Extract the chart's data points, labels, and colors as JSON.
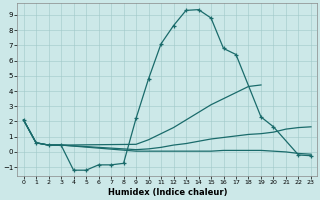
{
  "xlabel": "Humidex (Indice chaleur)",
  "xlim": [
    -0.5,
    23.5
  ],
  "ylim": [
    -1.6,
    9.8
  ],
  "xticks": [
    0,
    1,
    2,
    3,
    4,
    5,
    6,
    7,
    8,
    9,
    10,
    11,
    12,
    13,
    14,
    15,
    16,
    17,
    18,
    19,
    20,
    21,
    22,
    23
  ],
  "yticks": [
    -1,
    0,
    1,
    2,
    3,
    4,
    5,
    6,
    7,
    8,
    9
  ],
  "bg_color": "#cce8e8",
  "grid_color": "#a0c8c8",
  "line_color": "#1a6b6b",
  "curve_main": {
    "x": [
      0,
      1,
      2,
      3,
      4,
      5,
      6,
      7,
      8,
      9,
      10,
      11,
      12,
      13,
      14,
      15,
      16,
      17,
      19,
      20,
      22,
      23
    ],
    "y": [
      2.1,
      0.6,
      0.45,
      0.45,
      -1.2,
      -1.2,
      -0.85,
      -0.85,
      -0.75,
      2.2,
      4.8,
      7.1,
      8.3,
      9.3,
      9.35,
      8.8,
      6.8,
      6.4,
      2.3,
      1.65,
      -0.2,
      -0.25
    ]
  },
  "curve_diag": {
    "x": [
      0,
      1,
      2,
      3,
      9,
      10,
      11,
      12,
      13,
      14,
      15,
      16,
      17,
      18,
      19
    ],
    "y": [
      2.1,
      0.6,
      0.45,
      0.45,
      0.5,
      0.8,
      1.2,
      1.6,
      2.1,
      2.6,
      3.1,
      3.5,
      3.9,
      4.3,
      4.4
    ]
  },
  "curve_flat_diag": {
    "x": [
      0,
      1,
      2,
      3,
      9,
      10,
      11,
      12,
      13,
      14,
      15,
      16,
      17,
      18,
      19,
      20,
      21,
      22,
      23
    ],
    "y": [
      2.1,
      0.6,
      0.45,
      0.45,
      0.15,
      0.2,
      0.3,
      0.45,
      0.55,
      0.7,
      0.85,
      0.95,
      1.05,
      1.15,
      1.2,
      1.3,
      1.5,
      1.6,
      1.65
    ]
  },
  "curve_near_zero": {
    "x": [
      0,
      1,
      2,
      3,
      9,
      10,
      11,
      12,
      13,
      14,
      15,
      16,
      17,
      18,
      19,
      20,
      21,
      22,
      23
    ],
    "y": [
      2.1,
      0.6,
      0.45,
      0.45,
      0.05,
      0.05,
      0.05,
      0.05,
      0.05,
      0.05,
      0.05,
      0.1,
      0.1,
      0.1,
      0.1,
      0.05,
      0.0,
      -0.1,
      -0.15
    ]
  }
}
